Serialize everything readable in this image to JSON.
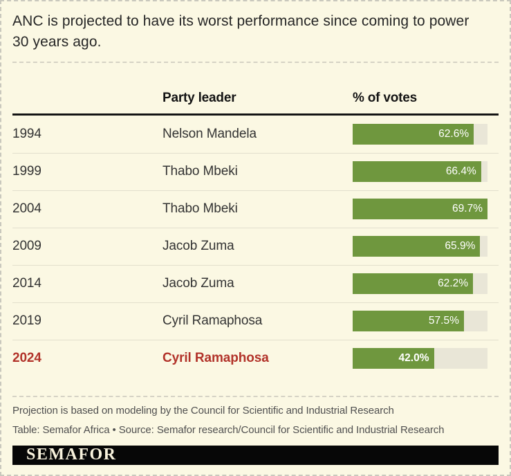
{
  "title": "ANC is projected to have its worst performance since coming to power 30 years ago.",
  "table": {
    "headers": {
      "leader": "Party leader",
      "votes": "% of votes"
    },
    "rows": [
      {
        "year": "1994",
        "leader": "Nelson Mandela",
        "value": 62.6,
        "label": "62.6%",
        "highlight": false
      },
      {
        "year": "1999",
        "leader": "Thabo Mbeki",
        "value": 66.4,
        "label": "66.4%",
        "highlight": false
      },
      {
        "year": "2004",
        "leader": "Thabo Mbeki",
        "value": 69.7,
        "label": "69.7%",
        "highlight": false
      },
      {
        "year": "2009",
        "leader": "Jacob Zuma",
        "value": 65.9,
        "label": "65.9%",
        "highlight": false
      },
      {
        "year": "2014",
        "leader": "Jacob Zuma",
        "value": 62.2,
        "label": "62.2%",
        "highlight": false
      },
      {
        "year": "2019",
        "leader": "Cyril Ramaphosa",
        "value": 57.5,
        "label": "57.5%",
        "highlight": false
      },
      {
        "year": "2024",
        "leader": "Cyril Ramaphosa",
        "value": 42.0,
        "label": "42.0%",
        "highlight": true
      }
    ]
  },
  "chart_data": {
    "type": "bar",
    "orientation": "horizontal",
    "title": "ANC is projected to have its worst performance since coming to power 30 years ago.",
    "categories": [
      "1994",
      "1999",
      "2004",
      "2009",
      "2014",
      "2019",
      "2024"
    ],
    "values": [
      62.6,
      66.4,
      69.7,
      65.9,
      62.2,
      57.5,
      42.0
    ],
    "value_labels": [
      "62.6%",
      "66.4%",
      "69.7%",
      "65.9%",
      "62.2%",
      "57.5%",
      "42.0%"
    ],
    "party_leaders": [
      "Nelson Mandela",
      "Thabo Mbeki",
      "Thabo Mbeki",
      "Jacob Zuma",
      "Jacob Zuma",
      "Cyril Ramaphosa",
      "Cyril Ramaphosa"
    ],
    "xlim": [
      0,
      69.7
    ],
    "grid": false,
    "legend": false,
    "bar_color": "#6f973e",
    "track_color": "#e9e6d7",
    "highlight_category": "2024",
    "highlight_text_color": "#b2332a"
  },
  "notes": {
    "projection": "Projection is based on modeling by the Council for Scientific and Industrial Research",
    "credit": "Table: Semafor Africa • Source: Semafor research/Council for Scientific and Industrial Research"
  },
  "logo": {
    "wordmark": "SEMAFOR"
  },
  "colors": {
    "background": "#fbf8e3",
    "bar_green": "#6f973e",
    "bar_track": "#e9e6d7",
    "highlight_red": "#b2332a",
    "header_rule": "#141414",
    "logo_band": "#070707",
    "logo_text": "#f7f1dc"
  }
}
